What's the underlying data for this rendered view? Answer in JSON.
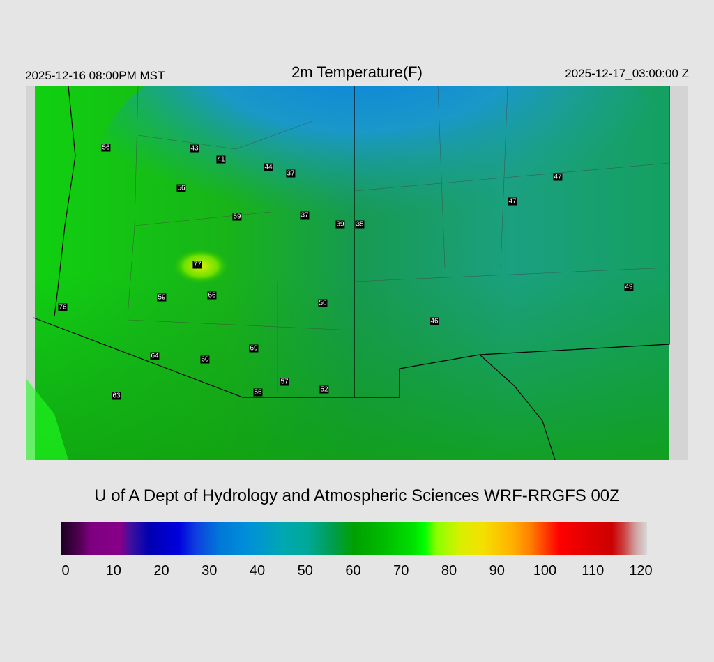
{
  "header": {
    "local_time": "2025-12-16 08:00PM MST",
    "title": "2m Temperature(F)",
    "valid_time": "2025-12-17_03:00:00 Z"
  },
  "map": {
    "region": "Arizona / New Mexico",
    "station_values": [
      "56",
      "43",
      "41",
      "44",
      "37",
      "56",
      "47",
      "47",
      "59",
      "37",
      "39",
      "35",
      "77",
      "59",
      "66",
      "56",
      "76",
      "49",
      "46",
      "69",
      "64",
      "60",
      "57",
      "56",
      "52",
      "63"
    ]
  },
  "credit": "U of A Dept of Hydrology and Atmospheric Sciences WRF-RRGFS 00Z",
  "colorbar": {
    "ticks": [
      "0",
      "10",
      "20",
      "30",
      "40",
      "50",
      "60",
      "70",
      "80",
      "90",
      "100",
      "110",
      "120"
    ],
    "range": [
      0,
      120
    ]
  }
}
